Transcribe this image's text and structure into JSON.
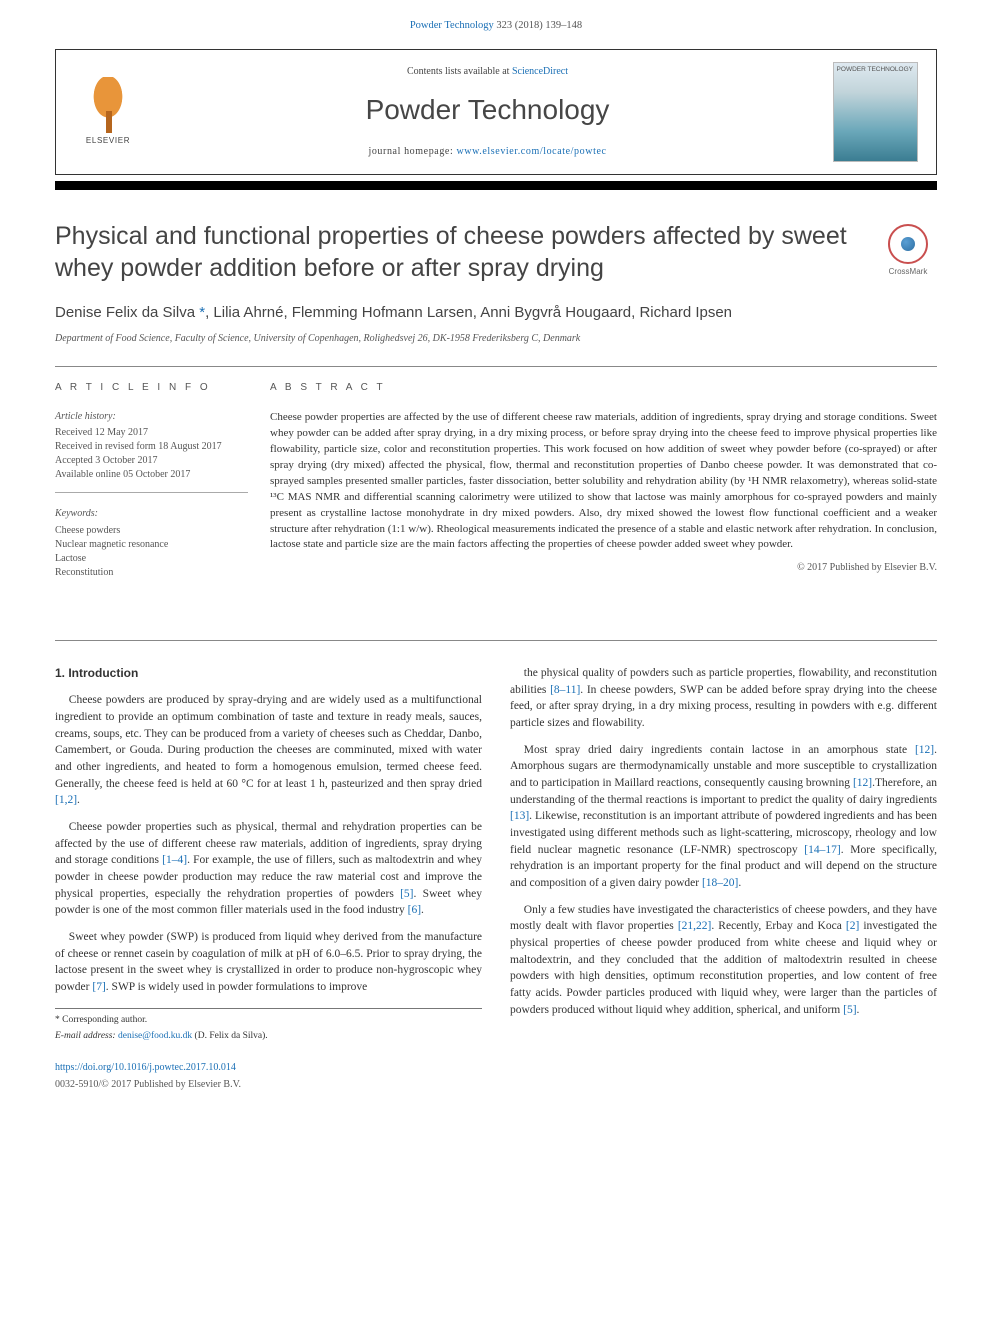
{
  "header": {
    "citation_prefix": "Powder Technology",
    "citation_rest": " 323 (2018) 139–148"
  },
  "journalBand": {
    "contents_prefix": "Contents lists available at ",
    "contents_link": "ScienceDirect",
    "journal_name": "Powder Technology",
    "homepage_prefix": "journal homepage: ",
    "homepage_link": "www.elsevier.com/locate/powtec",
    "publisher": "ELSEVIER",
    "cover_label": "POWDER\nTECHNOLOGY"
  },
  "article": {
    "title": "Physical and functional properties of cheese powders affected by sweet whey powder addition before or after spray drying",
    "authors_pre": "Denise Felix da Silva ",
    "authors_mark": "*",
    "authors_post": ", Lilia Ahrné, Flemming Hofmann Larsen, Anni Bygvrå Hougaard, Richard Ipsen",
    "affiliation": "Department of Food Science, Faculty of Science, University of Copenhagen, Rolighedsvej 26, DK-1958 Frederiksberg C, Denmark",
    "crossmark_label": "CrossMark"
  },
  "info": {
    "heading": "A R T I C L E   I N F O",
    "history_head": "Article history:",
    "history": [
      "Received 12 May 2017",
      "Received in revised form 18 August 2017",
      "Accepted 3 October 2017",
      "Available online 05 October 2017"
    ],
    "keywords_head": "Keywords:",
    "keywords": [
      "Cheese powders",
      "Nuclear magnetic resonance",
      "Lactose",
      "Reconstitution"
    ]
  },
  "abstract": {
    "heading": "A B S T R A C T",
    "text": "Cheese powder properties are affected by the use of different cheese raw materials, addition of ingredients, spray drying and storage conditions. Sweet whey powder can be added after spray drying, in a dry mixing process, or before spray drying into the cheese feed to improve physical properties like flowability, particle size, color and reconstitution properties. This work focused on how addition of sweet whey powder before (co-sprayed) or after spray drying (dry mixed) affected the physical, flow, thermal and reconstitution properties of Danbo cheese powder. It was demonstrated that co-sprayed samples presented smaller particles, faster dissociation, better solubility and rehydration ability (by ¹H NMR relaxometry), whereas solid-state ¹³C MAS NMR and differential scanning calorimetry were utilized to show that lactose was mainly amorphous for co-sprayed powders and mainly present as crystalline lactose monohydrate in dry mixed powders. Also, dry mixed showed the lowest flow functional coefficient and a weaker structure after rehydration (1:1 w/w). Rheological measurements indicated the presence of a stable and elastic network after rehydration. In conclusion, lactose state and particle size are the main factors affecting the properties of cheese powder added sweet whey powder.",
    "copyright": "© 2017 Published by Elsevier B.V."
  },
  "body": {
    "section_heading": "1. Introduction",
    "paragraphs": [
      "Cheese powders are produced by spray-drying and are widely used as a multifunctional ingredient to provide an optimum combination of taste and texture in ready meals, sauces, creams, soups, etc. They can be produced from a variety of cheeses such as Cheddar, Danbo, Camembert, or Gouda. During production the cheeses are comminuted, mixed with water and other ingredients, and heated to form a homogenous emulsion, termed cheese feed. Generally, the cheese feed is held at 60 °C for at least 1 h, pasteurized and then spray dried [1,2].",
      "Cheese powder properties such as physical, thermal and rehydration properties can be affected by the use of different cheese raw materials, addition of ingredients, spray drying and storage conditions [1–4]. For example, the use of fillers, such as maltodextrin and whey powder in cheese powder production may reduce the raw material cost and improve the physical properties, especially the rehydration properties of powders [5]. Sweet whey powder is one of the most common filler materials used in the food industry [6].",
      "Sweet whey powder (SWP) is produced from liquid whey derived from the manufacture of cheese or rennet casein by coagulation of milk at pH of 6.0–6.5. Prior to spray drying, the lactose present in the sweet whey is crystallized in order to produce non-hygroscopic whey powder [7]. SWP is widely used in powder formulations to improve",
      "the physical quality of powders such as particle properties, flowability, and reconstitution abilities [8–11]. In cheese powders, SWP can be added before spray drying into the cheese feed, or after spray drying, in a dry mixing process, resulting in powders with e.g. different particle sizes and flowability.",
      "Most spray dried dairy ingredients contain lactose in an amorphous state [12]. Amorphous sugars are thermodynamically unstable and more susceptible to crystallization and to participation in Maillard reactions, consequently causing browning [12].Therefore, an understanding of the thermal reactions is important to predict the quality of dairy ingredients [13]. Likewise, reconstitution is an important attribute of powdered ingredients and has been investigated using different methods such as light-scattering, microscopy, rheology and low field nuclear magnetic resonance (LF-NMR) spectroscopy [14–17]. More specifically, rehydration is an important property for the final product and will depend on the structure and composition of a given dairy powder [18–20].",
      "Only a few studies have investigated the characteristics of cheese powders, and they have mostly dealt with flavor properties [21,22]. Recently, Erbay and Koca [2] investigated the physical properties of cheese powder produced from white cheese and liquid whey or maltodextrin, and they concluded that the addition of maltodextrin resulted in cheese powders with high densities, optimum reconstitution properties, and low content of free fatty acids. Powder particles produced with liquid whey, were larger than the particles of powders produced without liquid whey addition, spherical, and uniform [5]."
    ],
    "refs": {
      "r12": "[1,2]",
      "r14": "[1–4]",
      "r5": "[5]",
      "r6": "[6]",
      "r7": "[7]",
      "r811": "[8–11]",
      "r12b": "[12]",
      "r13": "[13]",
      "r1417": "[14–17]",
      "r1820": "[18–20]",
      "r2122": "[21,22]",
      "r2": "[2]"
    }
  },
  "footnotes": {
    "corr_label": "* Corresponding author.",
    "email_label": "E-mail address: ",
    "email_link": "denise@food.ku.dk",
    "email_post": " (D. Felix da Silva)."
  },
  "footer": {
    "doi": "https://doi.org/10.1016/j.powtec.2017.10.014",
    "copyright": "0032-5910/© 2017 Published by Elsevier B.V."
  },
  "style": {
    "link_color": "#1a6fb5",
    "text_color": "#333333",
    "muted_color": "#555555",
    "title_font": "Arial, sans-serif",
    "body_font": "Georgia, 'Times New Roman', serif"
  }
}
